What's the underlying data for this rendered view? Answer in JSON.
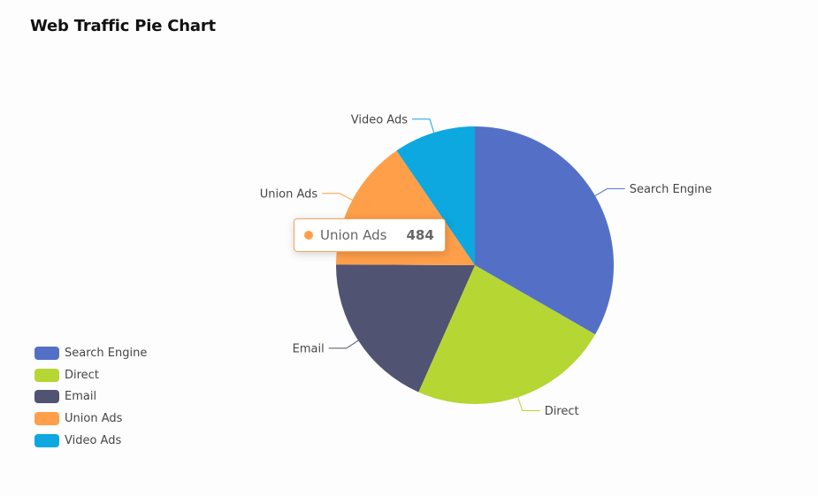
{
  "title": "Web Traffic Pie Chart",
  "chart_data": {
    "type": "pie",
    "title": "Web Traffic Pie Chart",
    "start_angle_deg": 90,
    "direction": "clockwise",
    "legend_position": "bottom-left",
    "series": [
      {
        "name": "Search Engine",
        "value": 1048,
        "color": "#5470c6"
      },
      {
        "name": "Direct",
        "value": 735,
        "color": "#b6d634"
      },
      {
        "name": "Email",
        "value": 580,
        "color": "#505372"
      },
      {
        "name": "Union Ads",
        "value": 484,
        "color": "#ff9f4a"
      },
      {
        "name": "Video Ads",
        "value": 300,
        "color": "#0ca8df"
      }
    ]
  },
  "tooltip": {
    "name": "Union Ads",
    "value": "484",
    "color": "#ff9f4a"
  }
}
